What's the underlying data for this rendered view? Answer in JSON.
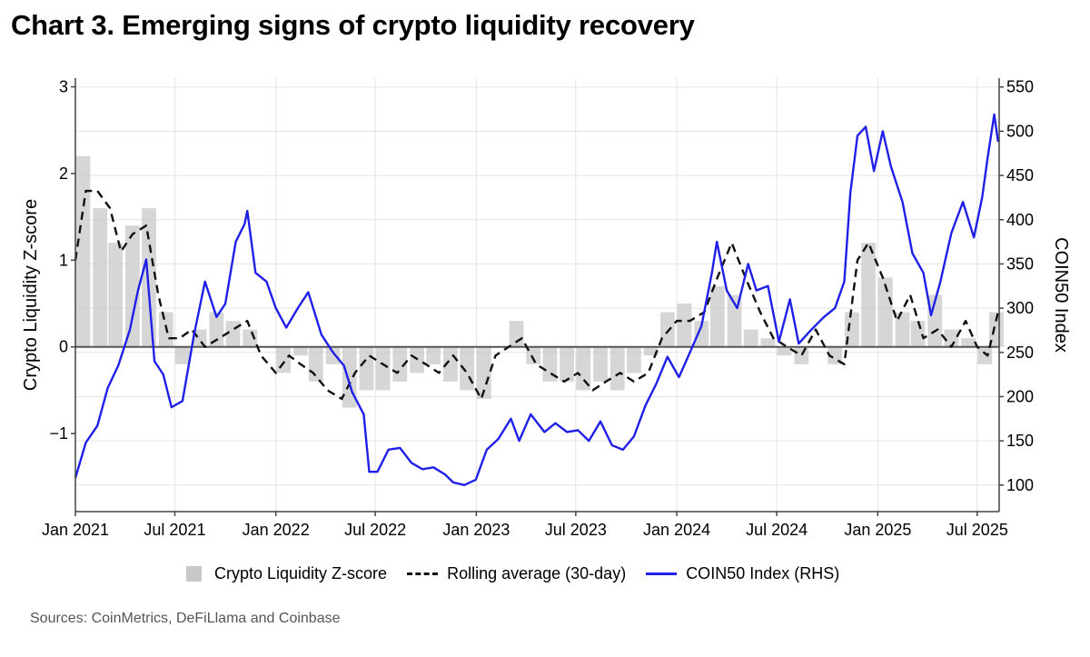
{
  "title": "Chart 3. Emerging signs of crypto liquidity recovery",
  "source": "Sources: CoinMetrics, DeFiLlama and Coinbase",
  "colors": {
    "zscore_bars": "#c8c8c8",
    "rolling": "#111111",
    "coin50": "#1f1fe8",
    "grid": "#e3e3e3",
    "zero_line": "#555555"
  },
  "legend": {
    "zscore": "Crypto Liquidity Z-score",
    "rolling": "Rolling average (30-day)",
    "coin50": "COIN50 Index (RHS)"
  },
  "chart_data": {
    "type": "bar+line",
    "xlabel": "",
    "ylabel": "Crypto Liquidity Z-score",
    "ylabel_right": "COIN50 Index",
    "xlim": [
      "2021-01-01",
      "2025-08-10"
    ],
    "ylim": [
      -1.9,
      3.1
    ],
    "ylim_right": [
      70,
      560
    ],
    "grid": true,
    "legend_position": "bottom",
    "x_ticks": [
      {
        "date": "2021-01-01",
        "label": "Jan 2021"
      },
      {
        "date": "2021-07-01",
        "label": "Jul 2021"
      },
      {
        "date": "2022-01-01",
        "label": "Jan 2022"
      },
      {
        "date": "2022-07-01",
        "label": "Jul 2022"
      },
      {
        "date": "2023-01-01",
        "label": "Jan 2023"
      },
      {
        "date": "2023-07-01",
        "label": "Jul 2023"
      },
      {
        "date": "2024-01-01",
        "label": "Jan 2024"
      },
      {
        "date": "2024-07-01",
        "label": "Jul 2024"
      },
      {
        "date": "2025-01-01",
        "label": "Jan 2025"
      },
      {
        "date": "2025-07-01",
        "label": "Jul 2025"
      }
    ],
    "y_ticks": [
      {
        "value": -1,
        "label": "−1"
      },
      {
        "value": 0,
        "label": "0"
      },
      {
        "value": 1,
        "label": "1"
      },
      {
        "value": 2,
        "label": "2"
      },
      {
        "value": 3,
        "label": "3"
      }
    ],
    "y_ticks_right": [
      {
        "value": 100,
        "label": "100"
      },
      {
        "value": 150,
        "label": "150"
      },
      {
        "value": 200,
        "label": "200"
      },
      {
        "value": 250,
        "label": "250"
      },
      {
        "value": 300,
        "label": "300"
      },
      {
        "value": 350,
        "label": "350"
      },
      {
        "value": 400,
        "label": "400"
      },
      {
        "value": 450,
        "label": "450"
      },
      {
        "value": 500,
        "label": "500"
      },
      {
        "value": 550,
        "label": "550"
      }
    ],
    "series": [
      {
        "name": "Crypto Liquidity Z-score",
        "kind": "bar",
        "axis": "left",
        "x": [
          "2021-01-15",
          "2021-02-15",
          "2021-03-15",
          "2021-04-15",
          "2021-05-15",
          "2021-06-15",
          "2021-07-15",
          "2021-08-15",
          "2021-09-15",
          "2021-10-15",
          "2021-11-15",
          "2021-12-15",
          "2022-01-15",
          "2022-02-15",
          "2022-03-15",
          "2022-04-15",
          "2022-05-15",
          "2022-06-15",
          "2022-07-15",
          "2022-08-15",
          "2022-09-15",
          "2022-10-15",
          "2022-11-15",
          "2022-12-15",
          "2023-01-15",
          "2023-02-15",
          "2023-03-15",
          "2023-04-15",
          "2023-05-15",
          "2023-06-15",
          "2023-07-15",
          "2023-08-15",
          "2023-09-15",
          "2023-10-15",
          "2023-11-15",
          "2023-12-15",
          "2024-01-15",
          "2024-02-15",
          "2024-03-15",
          "2024-04-15",
          "2024-05-15",
          "2024-06-15",
          "2024-07-15",
          "2024-08-15",
          "2024-09-15",
          "2024-10-15",
          "2024-11-15",
          "2024-12-15",
          "2025-01-15",
          "2025-02-15",
          "2025-03-15",
          "2025-04-15",
          "2025-05-15",
          "2025-06-15",
          "2025-07-15",
          "2025-08-05"
        ],
        "values": [
          2.2,
          1.6,
          1.2,
          1.4,
          1.6,
          0.4,
          -0.2,
          0.2,
          0.4,
          0.3,
          0.2,
          0.0,
          -0.3,
          -0.1,
          -0.4,
          -0.2,
          -0.7,
          -0.5,
          -0.5,
          -0.4,
          -0.3,
          -0.2,
          -0.4,
          -0.5,
          -0.6,
          0.0,
          0.3,
          -0.2,
          -0.4,
          -0.4,
          -0.5,
          -0.4,
          -0.5,
          -0.3,
          -0.1,
          0.4,
          0.5,
          0.3,
          0.7,
          0.6,
          0.2,
          0.1,
          -0.1,
          -0.2,
          0.0,
          -0.2,
          0.4,
          1.2,
          0.8,
          0.4,
          0.3,
          0.6,
          0.2,
          0.1,
          -0.2,
          0.4
        ]
      },
      {
        "name": "Rolling average (30-day)",
        "kind": "line",
        "style": "dashed",
        "axis": "left",
        "x": [
          "2021-01-01",
          "2021-01-20",
          "2021-02-10",
          "2021-03-05",
          "2021-03-25",
          "2021-04-15",
          "2021-05-10",
          "2021-06-01",
          "2021-06-20",
          "2021-07-10",
          "2021-08-01",
          "2021-08-25",
          "2021-09-20",
          "2021-10-15",
          "2021-11-10",
          "2021-12-05",
          "2022-01-01",
          "2022-01-25",
          "2022-02-15",
          "2022-03-10",
          "2022-04-05",
          "2022-05-01",
          "2022-05-25",
          "2022-06-20",
          "2022-07-15",
          "2022-08-10",
          "2022-09-05",
          "2022-10-01",
          "2022-10-25",
          "2022-11-20",
          "2022-12-15",
          "2023-01-10",
          "2023-02-05",
          "2023-03-01",
          "2023-03-25",
          "2023-04-20",
          "2023-05-15",
          "2023-06-10",
          "2023-07-05",
          "2023-08-01",
          "2023-08-25",
          "2023-09-20",
          "2023-10-15",
          "2023-11-10",
          "2023-12-05",
          "2024-01-01",
          "2024-01-25",
          "2024-02-20",
          "2024-03-15",
          "2024-04-10",
          "2024-05-05",
          "2024-06-01",
          "2024-06-25",
          "2024-07-20",
          "2024-08-15",
          "2024-09-10",
          "2024-10-05",
          "2024-11-01",
          "2024-11-25",
          "2024-12-15",
          "2025-01-10",
          "2025-02-05",
          "2025-03-01",
          "2025-03-25",
          "2025-04-20",
          "2025-05-15",
          "2025-06-10",
          "2025-07-01",
          "2025-07-20",
          "2025-08-08"
        ],
        "values": [
          1.0,
          1.8,
          1.8,
          1.6,
          1.1,
          1.3,
          1.4,
          0.6,
          0.1,
          0.1,
          0.2,
          0.0,
          0.1,
          0.2,
          0.3,
          -0.1,
          -0.3,
          -0.1,
          -0.2,
          -0.3,
          -0.5,
          -0.6,
          -0.3,
          -0.1,
          -0.2,
          -0.3,
          -0.1,
          -0.2,
          -0.3,
          -0.1,
          -0.3,
          -0.6,
          -0.1,
          0.0,
          0.1,
          -0.2,
          -0.3,
          -0.4,
          -0.3,
          -0.5,
          -0.4,
          -0.3,
          -0.4,
          -0.3,
          0.1,
          0.3,
          0.3,
          0.4,
          0.8,
          1.2,
          0.8,
          0.4,
          0.1,
          0.0,
          -0.1,
          0.2,
          -0.1,
          -0.2,
          1.0,
          1.2,
          0.8,
          0.3,
          0.6,
          0.1,
          0.2,
          0.0,
          0.3,
          0.0,
          -0.1,
          0.4
        ]
      },
      {
        "name": "COIN50 Index (RHS)",
        "kind": "line",
        "axis": "right",
        "x": [
          "2021-01-01",
          "2021-01-20",
          "2021-02-10",
          "2021-03-01",
          "2021-03-20",
          "2021-04-10",
          "2021-04-25",
          "2021-05-10",
          "2021-05-25",
          "2021-06-10",
          "2021-06-25",
          "2021-07-15",
          "2021-08-05",
          "2021-08-25",
          "2021-09-15",
          "2021-10-01",
          "2021-10-20",
          "2021-11-05",
          "2021-11-10",
          "2021-11-25",
          "2021-12-15",
          "2022-01-01",
          "2022-01-20",
          "2022-02-10",
          "2022-03-01",
          "2022-03-25",
          "2022-04-15",
          "2022-05-05",
          "2022-05-20",
          "2022-06-10",
          "2022-06-20",
          "2022-07-05",
          "2022-07-25",
          "2022-08-15",
          "2022-09-05",
          "2022-09-25",
          "2022-10-15",
          "2022-11-05",
          "2022-11-20",
          "2022-12-10",
          "2022-12-31",
          "2023-01-20",
          "2023-02-10",
          "2023-03-05",
          "2023-03-20",
          "2023-04-10",
          "2023-05-05",
          "2023-05-25",
          "2023-06-15",
          "2023-07-05",
          "2023-07-25",
          "2023-08-15",
          "2023-09-05",
          "2023-09-25",
          "2023-10-15",
          "2023-11-05",
          "2023-11-25",
          "2023-12-15",
          "2024-01-05",
          "2024-01-25",
          "2024-02-15",
          "2024-03-05",
          "2024-03-14",
          "2024-04-01",
          "2024-04-20",
          "2024-05-10",
          "2024-05-25",
          "2024-06-15",
          "2024-07-05",
          "2024-07-25",
          "2024-08-10",
          "2024-09-01",
          "2024-09-25",
          "2024-10-15",
          "2024-11-01",
          "2024-11-12",
          "2024-11-25",
          "2024-12-10",
          "2024-12-25",
          "2025-01-10",
          "2025-01-25",
          "2025-02-15",
          "2025-03-05",
          "2025-03-25",
          "2025-04-08",
          "2025-04-25",
          "2025-05-15",
          "2025-06-05",
          "2025-06-25",
          "2025-07-10",
          "2025-07-20",
          "2025-08-01",
          "2025-08-08"
        ],
        "values": [
          108,
          148,
          167,
          210,
          235,
          275,
          320,
          355,
          240,
          225,
          188,
          195,
          270,
          330,
          290,
          305,
          375,
          395,
          410,
          340,
          330,
          300,
          278,
          300,
          318,
          270,
          250,
          235,
          205,
          180,
          115,
          115,
          140,
          142,
          125,
          118,
          120,
          112,
          103,
          100,
          106,
          140,
          152,
          175,
          150,
          180,
          160,
          170,
          160,
          162,
          150,
          172,
          145,
          140,
          155,
          190,
          215,
          245,
          222,
          250,
          280,
          340,
          375,
          320,
          300,
          350,
          320,
          325,
          262,
          310,
          260,
          275,
          290,
          300,
          330,
          430,
          495,
          505,
          455,
          500,
          460,
          420,
          362,
          340,
          292,
          330,
          385,
          420,
          380,
          425,
          470,
          519,
          488
        ]
      }
    ]
  }
}
